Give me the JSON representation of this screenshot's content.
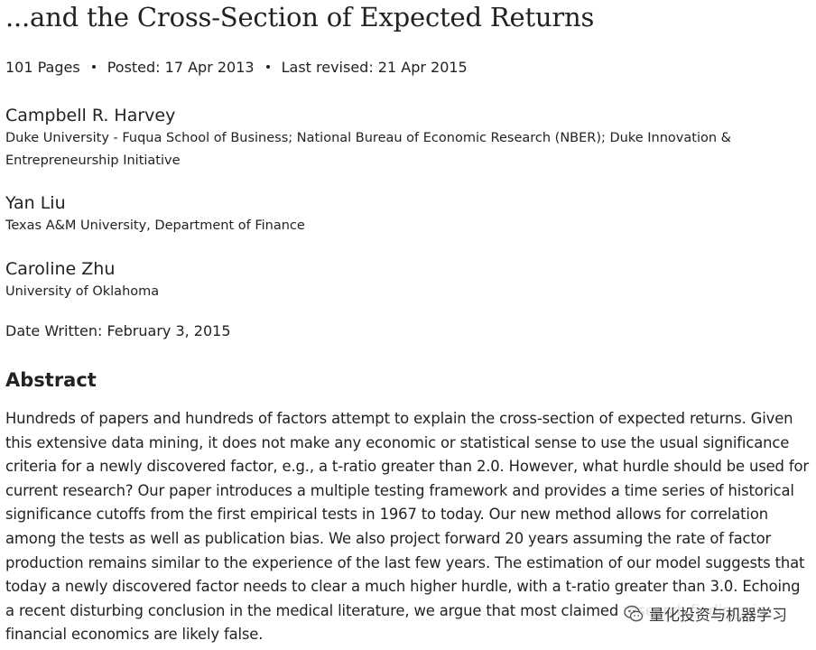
{
  "paper": {
    "title": "...and the Cross-Section of Expected Returns",
    "meta": {
      "pages": "101 Pages",
      "posted": "Posted: 17 Apr 2013",
      "revised": "Last revised: 21 Apr 2015"
    },
    "authors": [
      {
        "name": "Campbell R. Harvey",
        "affiliation": "Duke University - Fuqua School of Business; National Bureau of Economic Research (NBER); Duke Innovation & Entrepreneurship Initiative"
      },
      {
        "name": "Yan Liu",
        "affiliation": "Texas A&M University, Department of Finance"
      },
      {
        "name": "Caroline Zhu",
        "affiliation": "University of Oklahoma"
      }
    ],
    "date_written": "Date Written: February 3, 2015",
    "abstract_heading": "Abstract",
    "abstract": "Hundreds of papers and hundreds of factors attempt to explain the cross-section of expected returns. Given this extensive data mining, it does not make any economic or statistical sense to use the usual significance criteria for a newly discovered factor, e.g., a t-ratio greater than 2.0. However, what hurdle should be used for current research? Our paper introduces a multiple testing framework and provides a time series of historical significance cutoffs from the first empirical tests in 1967 to today. Our new method allows for correlation among the tests as well as publication bias. We also project forward 20 years assuming the rate of factor production remains similar to the experience of the last few years. The estimation of our model suggests that today a newly discovered factor needs to clear a much higher hurdle, with a t-ratio greater than 3.0. Echoing a recent disturbing conclusion in the medical literature, we argue that most claimed research findings in financial economics are likely false."
  },
  "watermark": {
    "text": "量化投资与机器学习",
    "icon": "wechat-icon"
  }
}
